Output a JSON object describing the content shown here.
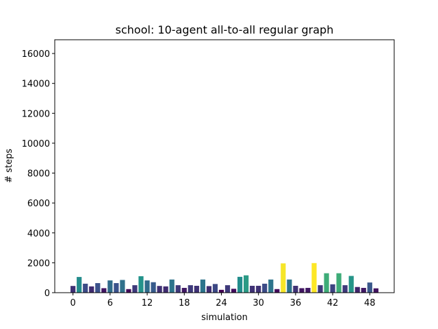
{
  "chart_data": {
    "type": "bar",
    "title": "school: 10-agent all-to-all regular graph",
    "xlabel": "simulation",
    "ylabel": "# steps",
    "x": [
      0,
      1,
      2,
      3,
      4,
      5,
      6,
      7,
      8,
      9,
      10,
      11,
      12,
      13,
      14,
      15,
      16,
      17,
      18,
      19,
      20,
      21,
      22,
      23,
      24,
      25,
      26,
      27,
      28,
      29,
      30,
      31,
      32,
      33,
      34,
      35,
      36,
      37,
      38,
      39,
      40,
      41,
      42,
      43,
      44,
      45,
      46,
      47,
      48,
      49
    ],
    "values": [
      450,
      1050,
      600,
      420,
      640,
      300,
      820,
      640,
      850,
      240,
      500,
      1100,
      820,
      700,
      450,
      420,
      880,
      500,
      320,
      500,
      460,
      880,
      440,
      580,
      190,
      500,
      260,
      1060,
      1160,
      460,
      460,
      600,
      880,
      240,
      1960,
      880,
      460,
      300,
      320,
      1980,
      500,
      1300,
      560,
      1300,
      500,
      1120,
      380,
      320,
      680,
      290
    ],
    "xticks": [
      0,
      6,
      12,
      18,
      24,
      30,
      36,
      42,
      48
    ],
    "xtick_labels": [
      "0",
      "6",
      "12",
      "18",
      "24",
      "30",
      "36",
      "42",
      "48"
    ],
    "yticks": [
      0,
      2000,
      4000,
      6000,
      8000,
      10000,
      12000,
      14000,
      16000
    ],
    "ytick_labels": [
      "0",
      "2000",
      "4000",
      "6000",
      "8000",
      "10000",
      "12000",
      "14000",
      "16000"
    ],
    "xlim": [
      -2.95,
      51.95
    ],
    "ylim": [
      0,
      16920
    ],
    "colormap": "viridis",
    "color_scale": "bar color mapped to value",
    "grid": false,
    "legend": "none"
  }
}
